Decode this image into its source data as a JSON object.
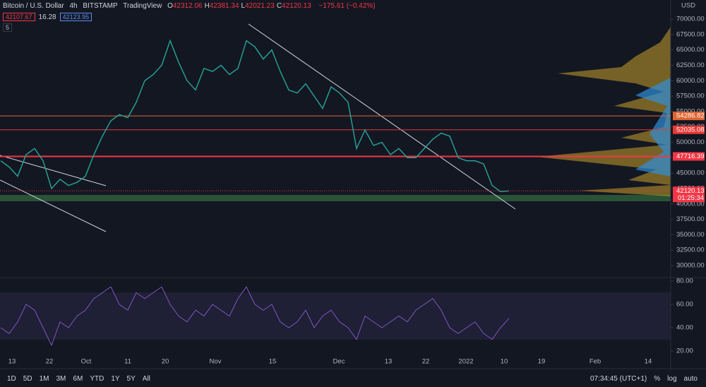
{
  "header": {
    "symbol": "Bitcoin / U.S. Dollar",
    "interval": "4h",
    "exchange": "BITSTAMP",
    "source": "TradingView",
    "ohlc": [
      {
        "label": "O",
        "value": "42312.06"
      },
      {
        "label": "H",
        "value": "42381.34"
      },
      {
        "label": "L",
        "value": "42021.23"
      },
      {
        "label": "C",
        "value": "42120.13"
      }
    ],
    "change": "−175.61 (−0.42%)",
    "bid": "42107.67",
    "spread": "16.28",
    "ask": "42123.95",
    "indicators": "5"
  },
  "currency": "USD",
  "chart_data": [
    {
      "type": "line",
      "color": "#26a69a",
      "values": [
        47000,
        46000,
        44500,
        48000,
        49000,
        47000,
        42500,
        44000,
        43000,
        43500,
        44500,
        48000,
        51000,
        53500,
        54500,
        54000,
        56500,
        60000,
        61000,
        62500,
        66500,
        63000,
        60000,
        58500,
        62000,
        61500,
        62500,
        61000,
        62000,
        66500,
        65500,
        63500,
        65000,
        61500,
        58500,
        58000,
        59500,
        57500,
        55500,
        59000,
        58000,
        56500,
        49000,
        52000,
        49500,
        50000,
        48000,
        49000,
        47500,
        47500,
        49000,
        50500,
        51500,
        51000,
        47500,
        47000,
        47000,
        46500,
        43000,
        42000,
        42120.13
      ],
      "ylim": [
        28170,
        73100
      ],
      "yticks": [
        {
          "value": 30000,
          "label": "30000.00"
        },
        {
          "value": 32500,
          "label": "32500.00"
        },
        {
          "value": 35000,
          "label": "35000.00"
        },
        {
          "value": 37500,
          "label": "37500.00"
        },
        {
          "value": 40000,
          "label": "40000.00"
        },
        {
          "value": 42500,
          "label": "42500.00"
        },
        {
          "value": 45000,
          "label": "45000.00"
        },
        {
          "value": 47500,
          "label": "47500.00"
        },
        {
          "value": 50000,
          "label": "50000.00"
        },
        {
          "value": 52500,
          "label": "52500.00"
        },
        {
          "value": 55000,
          "label": "55000.00"
        },
        {
          "value": 57500,
          "label": "57500.00"
        },
        {
          "value": 60000,
          "label": "60000.00"
        },
        {
          "value": 62500,
          "label": "62500.00"
        },
        {
          "value": 65000,
          "label": "65000.00"
        },
        {
          "value": 67500,
          "label": "67500.00"
        },
        {
          "value": 70000,
          "label": "70000.00"
        }
      ],
      "levels": [
        {
          "value": 54286.82,
          "color": "#e0632f"
        },
        {
          "value": 52035.08,
          "color": "#e53935"
        },
        {
          "value": 47716.39,
          "color": "#f23645"
        }
      ],
      "last": {
        "value": 42120.13,
        "countdown": "01:25:34",
        "color": "#f23645"
      }
    },
    {
      "type": "line",
      "color": "#7e57c2",
      "values": [
        40,
        35,
        45,
        60,
        55,
        40,
        25,
        45,
        40,
        50,
        55,
        65,
        70,
        75,
        60,
        55,
        70,
        65,
        70,
        75,
        60,
        50,
        45,
        55,
        50,
        60,
        55,
        50,
        65,
        75,
        60,
        55,
        60,
        45,
        40,
        45,
        55,
        40,
        50,
        55,
        45,
        40,
        30,
        50,
        45,
        40,
        45,
        50,
        45,
        55,
        60,
        65,
        55,
        40,
        35,
        40,
        45,
        35,
        30,
        40,
        48
      ],
      "ylim": [
        6.1,
        82.4
      ],
      "yticks": [
        {
          "value": 20,
          "label": "20.00"
        },
        {
          "value": 40,
          "label": "40.00"
        },
        {
          "value": 60,
          "label": "60.00"
        },
        {
          "value": 80,
          "label": "80.00"
        }
      ]
    }
  ],
  "time_axis": [
    "13",
    "22",
    "Oct",
    "11",
    "20",
    "Nov",
    "15",
    "Dec",
    "13",
    "22",
    "2022",
    "10",
    "19",
    "Feb",
    "14"
  ],
  "toolbar": {
    "ranges": [
      "1D",
      "5D",
      "1M",
      "3M",
      "6M",
      "YTD",
      "1Y",
      "5Y",
      "All"
    ],
    "clock": "07:34:45 (UTC+1)",
    "options": [
      "%",
      "log",
      "auto"
    ]
  }
}
